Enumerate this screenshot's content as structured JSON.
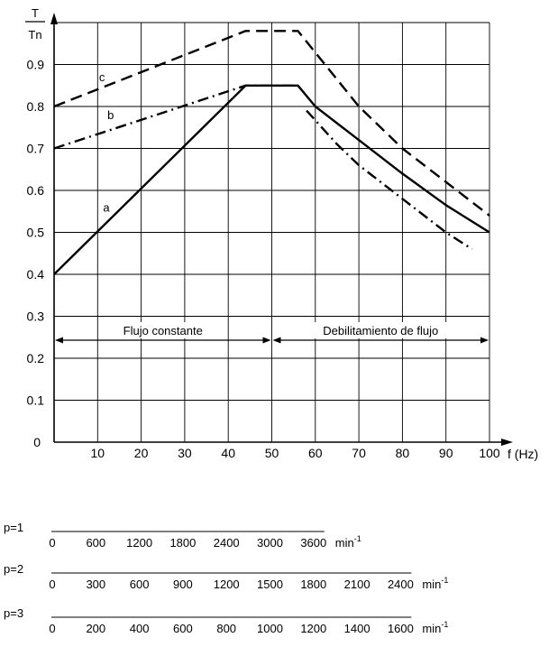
{
  "chart_data": {
    "type": "line",
    "y_axis_label_top": "T",
    "y_axis_label_bottom": "Tn",
    "x_axis_label": "f (Hz)",
    "xlim": [
      0,
      100
    ],
    "ylim": [
      0,
      1.0
    ],
    "x_ticks": [
      10,
      20,
      30,
      40,
      50,
      60,
      70,
      80,
      90,
      100
    ],
    "y_ticks": [
      0.1,
      0.2,
      0.3,
      0.4,
      0.5,
      0.6,
      0.7,
      0.8,
      0.9
    ],
    "y_tick_labels": [
      "0.1",
      "0.2",
      "0.3",
      "0.4",
      "0.5",
      "0.6",
      "0.7",
      "0.8",
      "0.9"
    ],
    "origin_label": "0",
    "grid": true,
    "series": [
      {
        "name": "c",
        "style": "dashed",
        "x": [
          0,
          44,
          56,
          70,
          80,
          90,
          100
        ],
        "y": [
          0.8,
          0.98,
          0.98,
          0.8,
          0.7,
          0.62,
          0.54
        ]
      },
      {
        "name": "b",
        "style": "dashdot",
        "x": [
          0,
          44,
          56
        ],
        "y": [
          0.7,
          0.85,
          0.85
        ]
      },
      {
        "name": "a",
        "style": "solid",
        "x": [
          0,
          44,
          56,
          60,
          70,
          80,
          90,
          100
        ],
        "y": [
          0.4,
          0.85,
          0.85,
          0.8,
          0.72,
          0.64,
          0.565,
          0.5
        ]
      },
      {
        "name": "",
        "style": "dashdot",
        "x": [
          58,
          65,
          70,
          80,
          90,
          96
        ],
        "y": [
          0.79,
          0.71,
          0.66,
          0.58,
          0.5,
          0.46
        ]
      }
    ],
    "regions": [
      {
        "label": "Flujo constante",
        "from": 0,
        "to": 50
      },
      {
        "label": "Debilitamiento de flujo",
        "from": 50,
        "to": 100
      }
    ]
  },
  "speed_scales": [
    {
      "label": "p=1",
      "unit": "min",
      "unit_exp": "-1",
      "span_hz": 60,
      "values": [
        "0",
        "600",
        "1200",
        "1800",
        "2400",
        "3000",
        "3600"
      ]
    },
    {
      "label": "p=2",
      "unit": "min",
      "unit_exp": "-1",
      "span_hz": 80,
      "values": [
        "0",
        "300",
        "600",
        "900",
        "1200",
        "1500",
        "1800",
        "2100",
        "2400"
      ]
    },
    {
      "label": "p=3",
      "unit": "min",
      "unit_exp": "-1",
      "span_hz": 80,
      "values": [
        "0",
        "200",
        "400",
        "600",
        "800",
        "1000",
        "1200",
        "1400",
        "1600"
      ]
    }
  ]
}
